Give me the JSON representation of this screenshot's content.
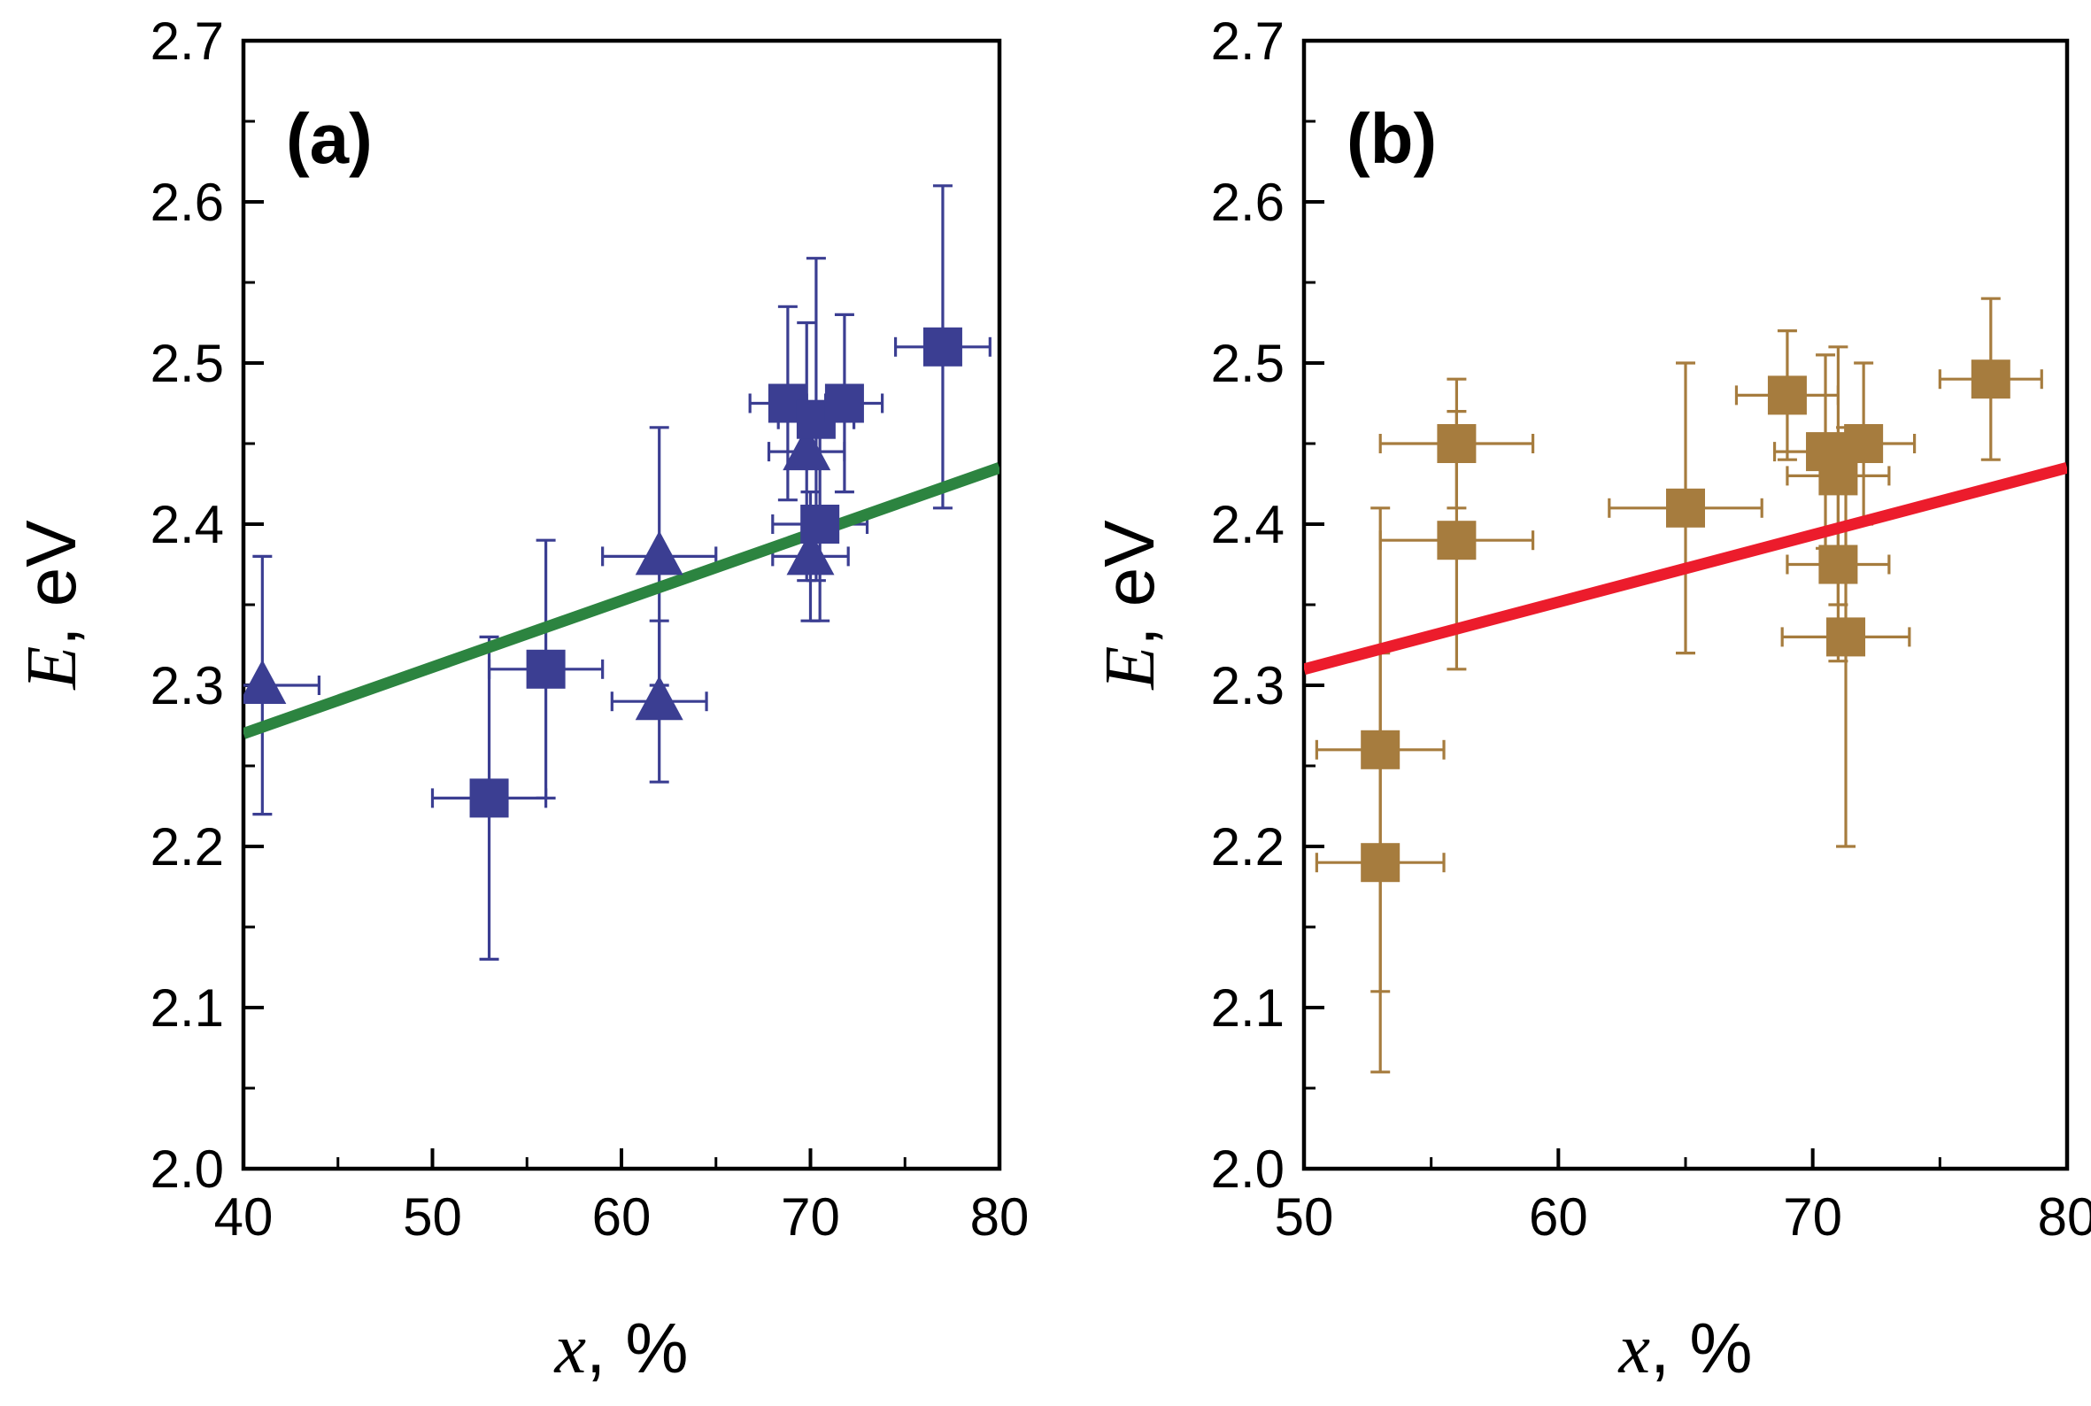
{
  "figure": {
    "background": "#ffffff",
    "frame_color": "#000000",
    "text_color": "#000000"
  },
  "chart_data": [
    {
      "type": "scatter",
      "panel_label": "(a)",
      "xlabel": "x, %",
      "xlabel_var": "x",
      "xlabel_rest": ", %",
      "ylabel": "E, eV",
      "ylabel_var": "E",
      "ylabel_rest": ", eV",
      "xlim": [
        40,
        80
      ],
      "ylim": [
        2.0,
        2.7
      ],
      "xticks": [
        40,
        50,
        60,
        70,
        80
      ],
      "xtick_labels": [
        "40",
        "50",
        "60",
        "70",
        "80"
      ],
      "yticks": [
        2.0,
        2.1,
        2.2,
        2.3,
        2.4,
        2.5,
        2.6,
        2.7
      ],
      "ytick_labels": [
        "2.0",
        "2.1",
        "2.2",
        "2.3",
        "2.4",
        "2.5",
        "2.6",
        "2.7"
      ],
      "x_minor_step": 5,
      "y_minor_step": 0.05,
      "grid": false,
      "legend": null,
      "marker_color": "#3b3e92",
      "fit_line": {
        "color": "#2c8440",
        "x1": 40,
        "y1": 2.27,
        "x2": 80,
        "y2": 2.435
      },
      "series": [
        {
          "name": "triangle-points",
          "marker": "triangle",
          "points_format": [
            "x",
            "y",
            "xerr",
            "yerr"
          ],
          "points": [
            [
              41,
              2.3,
              3,
              0.08
            ],
            [
              62,
              2.38,
              3,
              0.08
            ],
            [
              62,
              2.29,
              2.5,
              0.05
            ],
            [
              69.8,
              2.445,
              2,
              0.08
            ],
            [
              70,
              2.38,
              2,
              0.04
            ]
          ]
        },
        {
          "name": "square-points",
          "marker": "square",
          "points_format": [
            "x",
            "y",
            "xerr",
            "yerr"
          ],
          "points": [
            [
              53,
              2.23,
              3,
              0.1
            ],
            [
              56,
              2.31,
              3,
              0.08
            ],
            [
              68.8,
              2.475,
              2,
              0.06
            ],
            [
              70.3,
              2.465,
              2,
              0.1
            ],
            [
              71.8,
              2.475,
              2,
              0.055
            ],
            [
              70.5,
              2.4,
              2.5,
              0.06
            ],
            [
              77,
              2.51,
              2.5,
              0.1
            ]
          ]
        }
      ]
    },
    {
      "type": "scatter",
      "panel_label": "(b)",
      "xlabel": "x, %",
      "xlabel_var": "x",
      "xlabel_rest": ", %",
      "ylabel": "E, eV",
      "ylabel_var": "E",
      "ylabel_rest": ", eV",
      "xlim": [
        50,
        80
      ],
      "ylim": [
        2.0,
        2.7
      ],
      "xticks": [
        50,
        60,
        70,
        80
      ],
      "xtick_labels": [
        "50",
        "60",
        "70",
        "80"
      ],
      "yticks": [
        2.0,
        2.1,
        2.2,
        2.3,
        2.4,
        2.5,
        2.6,
        2.7
      ],
      "ytick_labels": [
        "2.0",
        "2.1",
        "2.2",
        "2.3",
        "2.4",
        "2.5",
        "2.6",
        "2.7"
      ],
      "x_minor_step": 5,
      "y_minor_step": 0.05,
      "grid": false,
      "legend": null,
      "marker_color": "#a67c3e",
      "fit_line": {
        "color": "#ec1c2c",
        "x1": 50,
        "y1": 2.31,
        "x2": 80,
        "y2": 2.435
      },
      "series": [
        {
          "name": "square-points",
          "marker": "square",
          "points_format": [
            "x",
            "y",
            "xerr",
            "yerr"
          ],
          "points": [
            [
              53,
              2.26,
              2.5,
              0.15
            ],
            [
              53,
              2.19,
              2.5,
              0.13
            ],
            [
              56,
              2.45,
              3,
              0.04
            ],
            [
              56,
              2.39,
              3,
              0.08
            ],
            [
              65,
              2.41,
              3,
              0.09
            ],
            [
              69,
              2.48,
              2,
              0.04
            ],
            [
              70.5,
              2.445,
              2,
              0.06
            ],
            [
              71,
              2.43,
              2,
              0.08
            ],
            [
              72,
              2.45,
              2,
              0.05
            ],
            [
              71,
              2.375,
              2,
              0.06
            ],
            [
              71.3,
              2.33,
              2.5,
              0.13
            ],
            [
              77,
              2.49,
              2,
              0.05
            ]
          ]
        }
      ]
    }
  ]
}
